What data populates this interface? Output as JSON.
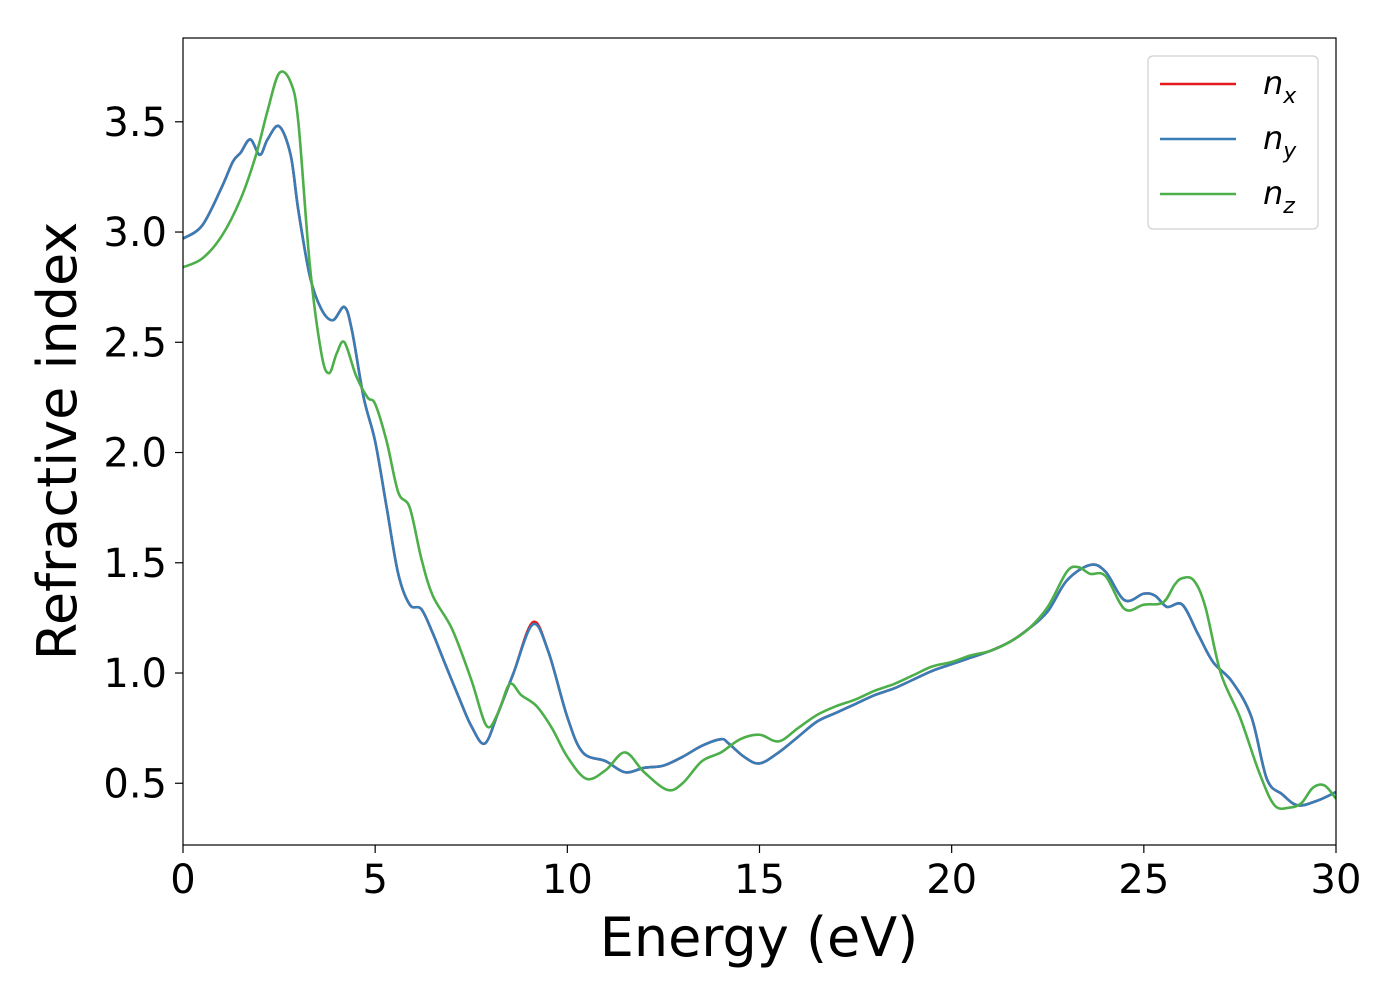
{
  "chart_data": {
    "type": "line",
    "xlabel": "Energy (eV)",
    "ylabel": "Refractive index",
    "xlim": [
      0,
      30
    ],
    "ylim": [
      0.22,
      3.88
    ],
    "xticks": [
      0,
      5,
      10,
      15,
      20,
      25,
      30
    ],
    "xtick_labels": [
      "0",
      "5",
      "10",
      "15",
      "20",
      "25",
      "30"
    ],
    "yticks": [
      0.5,
      1.0,
      1.5,
      2.0,
      2.5,
      3.0,
      3.5
    ],
    "ytick_labels": [
      "0.5",
      "1.0",
      "1.5",
      "2.0",
      "2.5",
      "3.0",
      "3.5"
    ],
    "grid": false,
    "legend_position": "top-right",
    "series": [
      {
        "name": "n",
        "subscript": "x",
        "color": "#e41a1c",
        "x": [
          0,
          0.5,
          1.0,
          1.3,
          1.5,
          1.75,
          2.0,
          2.2,
          2.5,
          2.8,
          3.0,
          3.3,
          3.6,
          3.9,
          4.2,
          4.4,
          4.7,
          5.0,
          5.3,
          5.6,
          5.9,
          6.2,
          6.5,
          6.8,
          7.2,
          7.5,
          7.85,
          8.2,
          8.6,
          9.1,
          9.5,
          10.0,
          10.4,
          11.0,
          11.5,
          12.0,
          12.5,
          13.0,
          13.5,
          14.0,
          14.2,
          14.6,
          15.0,
          15.5,
          16.0,
          16.5,
          17.0,
          17.5,
          18.0,
          18.5,
          19.0,
          19.5,
          20.0,
          20.5,
          21.0,
          21.5,
          22.0,
          22.5,
          23.0,
          23.6,
          24.0,
          24.5,
          25.0,
          25.3,
          25.6,
          26.0,
          26.4,
          26.8,
          27.3,
          27.8,
          28.2,
          28.6,
          29.0,
          29.5,
          30.0
        ],
        "y": [
          2.97,
          3.03,
          3.2,
          3.32,
          3.36,
          3.42,
          3.35,
          3.42,
          3.48,
          3.35,
          3.1,
          2.8,
          2.65,
          2.6,
          2.66,
          2.55,
          2.25,
          2.05,
          1.75,
          1.45,
          1.31,
          1.29,
          1.18,
          1.05,
          0.88,
          0.76,
          0.68,
          0.82,
          1.0,
          1.23,
          1.1,
          0.8,
          0.64,
          0.6,
          0.55,
          0.57,
          0.58,
          0.62,
          0.67,
          0.7,
          0.68,
          0.62,
          0.59,
          0.64,
          0.71,
          0.78,
          0.82,
          0.86,
          0.9,
          0.93,
          0.97,
          1.01,
          1.04,
          1.07,
          1.1,
          1.14,
          1.2,
          1.28,
          1.42,
          1.49,
          1.46,
          1.33,
          1.36,
          1.35,
          1.3,
          1.31,
          1.18,
          1.05,
          0.96,
          0.8,
          0.52,
          0.45,
          0.4,
          0.42,
          0.46
        ]
      },
      {
        "name": "n",
        "subscript": "y",
        "color": "#377eb8",
        "x": [
          0,
          0.5,
          1.0,
          1.3,
          1.5,
          1.75,
          2.0,
          2.2,
          2.5,
          2.8,
          3.0,
          3.3,
          3.6,
          3.9,
          4.2,
          4.4,
          4.7,
          5.0,
          5.3,
          5.6,
          5.9,
          6.2,
          6.5,
          6.8,
          7.2,
          7.5,
          7.85,
          8.2,
          8.6,
          9.1,
          9.5,
          10.0,
          10.4,
          11.0,
          11.5,
          12.0,
          12.5,
          13.0,
          13.5,
          14.0,
          14.2,
          14.6,
          15.0,
          15.5,
          16.0,
          16.5,
          17.0,
          17.5,
          18.0,
          18.5,
          19.0,
          19.5,
          20.0,
          20.5,
          21.0,
          21.5,
          22.0,
          22.5,
          23.0,
          23.6,
          24.0,
          24.5,
          25.0,
          25.3,
          25.6,
          26.0,
          26.4,
          26.8,
          27.3,
          27.8,
          28.2,
          28.6,
          29.0,
          29.5,
          30.0
        ],
        "y": [
          2.97,
          3.03,
          3.2,
          3.32,
          3.36,
          3.42,
          3.35,
          3.42,
          3.48,
          3.35,
          3.1,
          2.8,
          2.65,
          2.6,
          2.66,
          2.55,
          2.25,
          2.05,
          1.75,
          1.45,
          1.31,
          1.29,
          1.18,
          1.05,
          0.88,
          0.76,
          0.68,
          0.82,
          1.0,
          1.22,
          1.1,
          0.8,
          0.64,
          0.6,
          0.55,
          0.57,
          0.58,
          0.62,
          0.67,
          0.7,
          0.68,
          0.62,
          0.59,
          0.64,
          0.71,
          0.78,
          0.82,
          0.86,
          0.9,
          0.93,
          0.97,
          1.01,
          1.04,
          1.07,
          1.1,
          1.14,
          1.2,
          1.28,
          1.42,
          1.49,
          1.46,
          1.33,
          1.36,
          1.35,
          1.3,
          1.31,
          1.18,
          1.05,
          0.96,
          0.8,
          0.52,
          0.45,
          0.4,
          0.42,
          0.46
        ]
      },
      {
        "name": "n",
        "subscript": "z",
        "color": "#4daf4a",
        "x": [
          0,
          0.5,
          1.0,
          1.5,
          1.9,
          2.2,
          2.5,
          2.8,
          3.0,
          3.3,
          3.6,
          3.8,
          4.0,
          4.2,
          4.5,
          4.8,
          5.0,
          5.3,
          5.6,
          5.9,
          6.2,
          6.5,
          7.0,
          7.5,
          7.9,
          8.2,
          8.5,
          8.8,
          9.2,
          9.6,
          10.0,
          10.5,
          11.0,
          11.5,
          12.0,
          12.6,
          13.0,
          13.5,
          14.0,
          14.5,
          15.0,
          15.5,
          16.0,
          16.5,
          17.0,
          17.5,
          18.0,
          18.5,
          19.0,
          19.5,
          20.0,
          20.5,
          21.0,
          21.5,
          22.0,
          22.5,
          23.0,
          23.3,
          23.6,
          24.0,
          24.5,
          25.0,
          25.5,
          25.8,
          26.0,
          26.3,
          26.6,
          27.0,
          27.5,
          28.0,
          28.4,
          28.8,
          29.1,
          29.4,
          29.7,
          30.0
        ],
        "y": [
          2.84,
          2.88,
          2.98,
          3.15,
          3.35,
          3.55,
          3.72,
          3.68,
          3.5,
          2.85,
          2.45,
          2.36,
          2.45,
          2.5,
          2.35,
          2.25,
          2.22,
          2.05,
          1.82,
          1.75,
          1.52,
          1.35,
          1.2,
          0.97,
          0.76,
          0.82,
          0.95,
          0.9,
          0.85,
          0.75,
          0.62,
          0.52,
          0.56,
          0.64,
          0.55,
          0.47,
          0.5,
          0.6,
          0.64,
          0.7,
          0.72,
          0.69,
          0.75,
          0.81,
          0.85,
          0.88,
          0.92,
          0.95,
          0.99,
          1.03,
          1.05,
          1.08,
          1.1,
          1.14,
          1.2,
          1.3,
          1.46,
          1.48,
          1.45,
          1.44,
          1.29,
          1.31,
          1.32,
          1.4,
          1.43,
          1.42,
          1.3,
          1.0,
          0.8,
          0.55,
          0.4,
          0.39,
          0.41,
          0.48,
          0.49,
          0.43
        ]
      }
    ]
  }
}
